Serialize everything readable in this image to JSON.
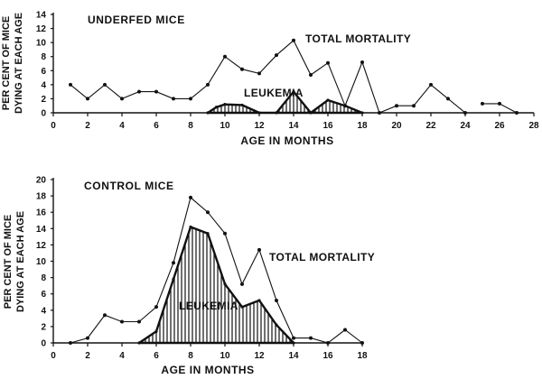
{
  "chart_data": [
    {
      "type": "line",
      "title": "UNDERFED MICE",
      "xlabel": "AGE IN MONTHS",
      "ylabel": [
        "PER CENT OF MICE",
        "DYING AT EACH AGE"
      ],
      "xlim": [
        0,
        28
      ],
      "ylim": [
        0,
        14
      ],
      "xticks": [
        "0",
        "2",
        "4",
        "6",
        "8",
        "10",
        "12",
        "14",
        "16",
        "18",
        "20",
        "22",
        "24",
        "26",
        "28"
      ],
      "yticks": [
        "0",
        "2",
        "4",
        "6",
        "8",
        "10",
        "12",
        "14"
      ],
      "series": [
        {
          "name": "TOTAL MORTALITY",
          "segments": [
            [
              [
                1,
                4
              ],
              [
                2,
                2
              ],
              [
                3,
                4
              ],
              [
                4,
                2
              ],
              [
                5,
                3
              ],
              [
                6,
                3
              ],
              [
                7,
                2
              ],
              [
                8,
                2
              ],
              [
                9,
                4
              ],
              [
                10,
                8
              ],
              [
                11,
                6.2
              ],
              [
                12,
                5.6
              ],
              [
                13,
                8.2
              ],
              [
                14,
                10.3
              ],
              [
                15,
                5.4
              ],
              [
                16,
                7.1
              ],
              [
                17,
                1
              ],
              [
                18,
                7.2
              ],
              [
                19,
                0
              ],
              [
                20,
                1
              ],
              [
                21,
                1
              ],
              [
                22,
                4
              ],
              [
                23,
                2
              ],
              [
                24,
                0
              ]
            ],
            [
              [
                25,
                1.3
              ],
              [
                26,
                1.3
              ],
              [
                27,
                0
              ]
            ]
          ]
        },
        {
          "name": "LEUKEMIA",
          "fill": "hatched",
          "points": [
            [
              9,
              0
            ],
            [
              9.5,
              0.8
            ],
            [
              10,
              1.2
            ],
            [
              11,
              1.1
            ],
            [
              12,
              0
            ],
            [
              13,
              0
            ],
            [
              14,
              3
            ],
            [
              15,
              0
            ],
            [
              16,
              1.8
            ],
            [
              17,
              1
            ],
            [
              18,
              0
            ]
          ]
        }
      ]
    },
    {
      "type": "line",
      "title": "CONTROL MICE",
      "xlabel": "AGE IN MONTHS",
      "ylabel": [
        "PER CENT OF MICE",
        "DYING AT EACH AGE"
      ],
      "xlim": [
        0,
        18
      ],
      "ylim": [
        0,
        20
      ],
      "xticks": [
        "0",
        "2",
        "4",
        "6",
        "8",
        "10",
        "12",
        "14",
        "16",
        "18"
      ],
      "yticks": [
        "0",
        "2",
        "4",
        "6",
        "8",
        "10",
        "12",
        "14",
        "16",
        "18",
        "20"
      ],
      "series": [
        {
          "name": "TOTAL MORTALITY",
          "segments": [
            [
              [
                1,
                0
              ],
              [
                2,
                0.6
              ],
              [
                3,
                3.4
              ],
              [
                4,
                2.6
              ],
              [
                5,
                2.6
              ],
              [
                6,
                4.4
              ],
              [
                7,
                9.8
              ],
              [
                8,
                17.8
              ],
              [
                9,
                16
              ],
              [
                10,
                13.4
              ],
              [
                11,
                7.2
              ],
              [
                12,
                11.4
              ],
              [
                13,
                5.2
              ],
              [
                14,
                0.6
              ],
              [
                15,
                0.6
              ],
              [
                16,
                0
              ],
              [
                17,
                1.6
              ],
              [
                18,
                0
              ]
            ]
          ]
        },
        {
          "name": "LEUKEMIA",
          "fill": "hatched",
          "points": [
            [
              5,
              0
            ],
            [
              6,
              1.4
            ],
            [
              7,
              7.8
            ],
            [
              8,
              14.2
            ],
            [
              9,
              13.4
            ],
            [
              10,
              7.2
            ],
            [
              11,
              4.4
            ],
            [
              12,
              5.2
            ],
            [
              13,
              2.2
            ],
            [
              14,
              0
            ]
          ]
        }
      ]
    }
  ]
}
